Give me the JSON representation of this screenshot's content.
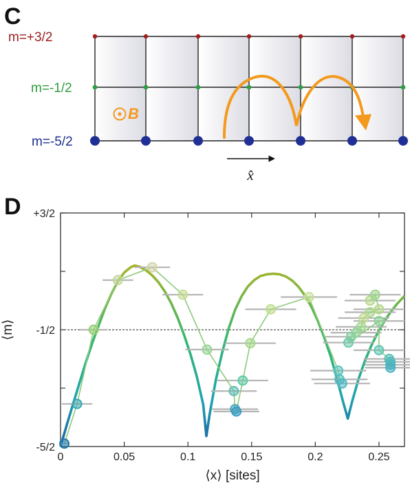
{
  "panel_c": {
    "letter": "C",
    "levels": [
      {
        "label": "m=+3/2",
        "color": "#9b1c1c"
      },
      {
        "label": "m=-1/2",
        "color": "#2e9b3a"
      },
      {
        "label": "m=-5/2",
        "color": "#1f2f8f"
      }
    ],
    "field_label": "B",
    "direction_label": "x̂",
    "colors": {
      "arrow": "#f39a1e",
      "lattice": "#222222",
      "cell_fill": "#e8e8ee"
    }
  },
  "chart_data": {
    "panel_letter": "D",
    "type": "line",
    "xlabel": "⟨x⟩ [sites]",
    "ylabel": "⟨m⟩",
    "xlim": [
      0,
      0.27
    ],
    "ylim": [
      -2.5,
      1.5
    ],
    "x_ticks": [
      0,
      0.05,
      0.1,
      0.15,
      0.2,
      0.25
    ],
    "x_tick_labels": [
      "0",
      "0.05",
      "0.1",
      "0.15",
      "0.2",
      "0.25"
    ],
    "y_ticks": [
      {
        "value": 1.5,
        "label": "+3/2",
        "color": "#9b1c1c"
      },
      {
        "value": -0.5,
        "label": "-1/2",
        "color": "#2e9b3a"
      },
      {
        "value": -2.5,
        "label": "-5/2",
        "color": "#1f2f8f"
      }
    ],
    "reference_line": {
      "y": -0.5,
      "style": "dashed"
    },
    "theory_curve": {
      "x": [
        0.0,
        0.005,
        0.01,
        0.015,
        0.02,
        0.025,
        0.03,
        0.035,
        0.04,
        0.045,
        0.05,
        0.055,
        0.058,
        0.062,
        0.067,
        0.072,
        0.077,
        0.082,
        0.087,
        0.092,
        0.097,
        0.102,
        0.107,
        0.112,
        0.1145,
        0.117,
        0.122,
        0.127,
        0.132,
        0.137,
        0.142,
        0.147,
        0.152,
        0.157,
        0.162,
        0.167,
        0.172,
        0.177,
        0.182,
        0.187,
        0.192,
        0.197,
        0.202,
        0.207,
        0.212,
        0.217,
        0.222,
        0.2255,
        0.229,
        0.234,
        0.239,
        0.244,
        0.249,
        0.254,
        0.259,
        0.264,
        0.27
      ],
      "y": [
        -2.5,
        -2.12,
        -1.76,
        -1.4,
        -1.05,
        -0.72,
        -0.42,
        -0.13,
        0.12,
        0.33,
        0.48,
        0.57,
        0.6,
        0.58,
        0.52,
        0.43,
        0.31,
        0.15,
        -0.05,
        -0.3,
        -0.59,
        -0.92,
        -1.3,
        -1.78,
        -2.32,
        -1.95,
        -1.35,
        -0.88,
        -0.48,
        -0.16,
        0.07,
        0.24,
        0.35,
        0.42,
        0.45,
        0.46,
        0.45,
        0.41,
        0.34,
        0.23,
        0.08,
        -0.11,
        -0.35,
        -0.63,
        -0.95,
        -1.34,
        -1.75,
        -2.02,
        -1.72,
        -1.34,
        -1.03,
        -0.77,
        -0.55,
        -0.36,
        -0.2,
        -0.06,
        0.08
      ]
    },
    "series": [
      {
        "x": [
          0.003,
          0.013,
          0.026,
          0.045,
          0.072,
          0.096,
          0.115,
          0.136,
          0.137,
          0.138,
          0.143,
          0.149,
          0.165,
          0.195,
          0.218,
          0.219,
          0.221
        ],
        "y": [
          -2.45,
          -1.77,
          -0.5,
          0.35,
          0.57,
          0.1,
          -0.84,
          -1.55,
          -1.86,
          -1.9,
          -1.37,
          -0.73,
          -0.15,
          0.06,
          -1.2,
          -1.35,
          -1.42
        ],
        "xerr": [
          0.004,
          0.012,
          0.011,
          0.012,
          0.014,
          0.016,
          0.017,
          0.018,
          0.018,
          0.018,
          0.02,
          0.02,
          0.02,
          0.022,
          0.022,
          0.022,
          0.022
        ],
        "colors": [
          "#1e7aa8",
          "#3aa7b5",
          "#93cf6f",
          "#c4d79a",
          "#d6d6ae",
          "#c8dc96",
          "#99d69c",
          "#5fbcb4",
          "#49a9bf",
          "#3d9bc4",
          "#5fcba6",
          "#a5d98a",
          "#bfdf8d",
          "#c9e19a",
          "#5cc5bd",
          "#52bcc0",
          "#4fb7c2"
        ]
      },
      {
        "x": [
          0.243,
          0.247,
          0.25,
          0.243,
          0.238,
          0.236,
          0.232,
          0.228,
          0.226,
          0.25,
          0.25,
          0.258,
          0.259,
          0.259,
          0.259
        ],
        "y": [
          0.0,
          0.1,
          -0.15,
          -0.2,
          -0.3,
          -0.45,
          -0.55,
          -0.62,
          -0.72,
          -0.35,
          -0.85,
          -1.0,
          -1.05,
          -1.1,
          -1.15
        ],
        "xerr": [
          0.02,
          0.02,
          0.02,
          0.02,
          0.02,
          0.02,
          0.02,
          0.02,
          0.02,
          0.02,
          0.02,
          0.02,
          0.02,
          0.02,
          0.02
        ],
        "colors": [
          "#b5d98a",
          "#9dd68c",
          "#b8d98d",
          "#a9d78c",
          "#c2dc92",
          "#a3d98f",
          "#93d49a",
          "#85cf9f",
          "#6fcaa8",
          "#8fd198",
          "#5ec6b4",
          "#58c1b8",
          "#53bbbc",
          "#4eb6c0",
          "#49b1c3"
        ]
      }
    ],
    "marker_points": [
      {
        "x": 0.003,
        "y": -2.45,
        "xerr": 0.004,
        "color": "#1e7aa8"
      },
      {
        "x": 0.013,
        "y": -1.77,
        "xerr": 0.012,
        "color": "#3aa7b5"
      },
      {
        "x": 0.026,
        "y": -0.5,
        "xerr": 0.011,
        "color": "#93cf6f"
      },
      {
        "x": 0.045,
        "y": 0.35,
        "xerr": 0.012,
        "color": "#c4d79a"
      },
      {
        "x": 0.072,
        "y": 0.57,
        "xerr": 0.014,
        "color": "#d6d6ae"
      },
      {
        "x": 0.096,
        "y": 0.1,
        "xerr": 0.016,
        "color": "#c8dc96"
      },
      {
        "x": 0.115,
        "y": -0.84,
        "xerr": 0.017,
        "color": "#99d69c"
      },
      {
        "x": 0.136,
        "y": -1.55,
        "xerr": 0.018,
        "color": "#5fbcb4"
      },
      {
        "x": 0.137,
        "y": -1.86,
        "xerr": 0.018,
        "color": "#49a9bf"
      },
      {
        "x": 0.138,
        "y": -1.9,
        "xerr": 0.018,
        "color": "#3d9bc4"
      },
      {
        "x": 0.143,
        "y": -1.37,
        "xerr": 0.02,
        "color": "#5fcba6"
      },
      {
        "x": 0.149,
        "y": -0.73,
        "xerr": 0.02,
        "color": "#a5d98a"
      },
      {
        "x": 0.165,
        "y": -0.15,
        "xerr": 0.02,
        "color": "#bfdf8d"
      },
      {
        "x": 0.195,
        "y": 0.06,
        "xerr": 0.022,
        "color": "#c9e19a"
      },
      {
        "x": 0.218,
        "y": -1.2,
        "xerr": 0.022,
        "color": "#5cc5bd"
      },
      {
        "x": 0.219,
        "y": -1.35,
        "xerr": 0.022,
        "color": "#52bcc0"
      },
      {
        "x": 0.221,
        "y": -1.42,
        "xerr": 0.022,
        "color": "#4fb7c2"
      }
    ],
    "grid": false,
    "colors": {
      "curve_high": "#b5b522",
      "curve_mid": "#2bb673",
      "curve_low": "#1e6fa8",
      "errorbar": "#b5b5b5",
      "connector": "#8fc97a",
      "axis_frame": "#333333"
    }
  }
}
